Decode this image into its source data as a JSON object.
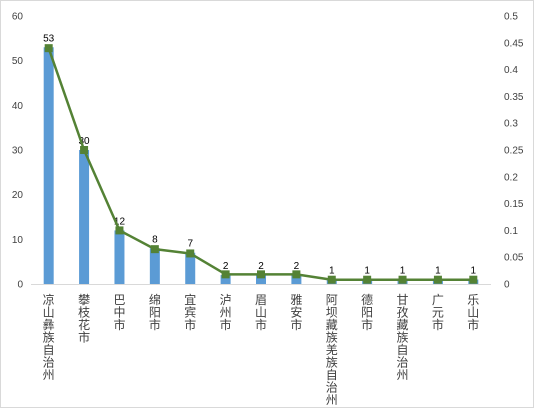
{
  "chart_data": {
    "type": "bar",
    "categories": [
      "凉山彝族自治州",
      "攀枝花市",
      "巴中市",
      "绵阳市",
      "宜宾市",
      "泸州市",
      "眉山市",
      "雅安市",
      "阿坝藏族羌族自治州",
      "德阳市",
      "甘孜藏族自治州",
      "广元市",
      "乐山市"
    ],
    "series": [
      {
        "type": "bar",
        "axis": "left",
        "color": "#5b9bd5",
        "values": [
          53,
          30,
          12,
          8,
          7,
          2,
          2,
          2,
          1,
          1,
          1,
          1,
          1
        ],
        "data_labels": [
          "53",
          "30",
          "12",
          "8",
          "7",
          "2",
          "2",
          "2",
          "1",
          "1",
          "1",
          "1",
          "1"
        ]
      },
      {
        "type": "line",
        "axis": "right",
        "color": "#548235",
        "marker": "square",
        "values": [
          0.44,
          0.25,
          0.1,
          0.065,
          0.057,
          0.018,
          0.018,
          0.018,
          0.008,
          0.008,
          0.008,
          0.008,
          0.008
        ]
      }
    ],
    "y_left": {
      "min": 0,
      "max": 60,
      "ticks": [
        "0",
        "10",
        "20",
        "30",
        "40",
        "50",
        "60"
      ]
    },
    "y_right": {
      "min": 0,
      "max": 0.5,
      "ticks": [
        "0",
        "0.05",
        "0.1",
        "0.15",
        "0.2",
        "0.25",
        "0.3",
        "0.35",
        "0.4",
        "0.45",
        "0.5"
      ]
    },
    "grid": false,
    "legend": "none",
    "title": "",
    "xlabel": "",
    "ylabel": ""
  }
}
